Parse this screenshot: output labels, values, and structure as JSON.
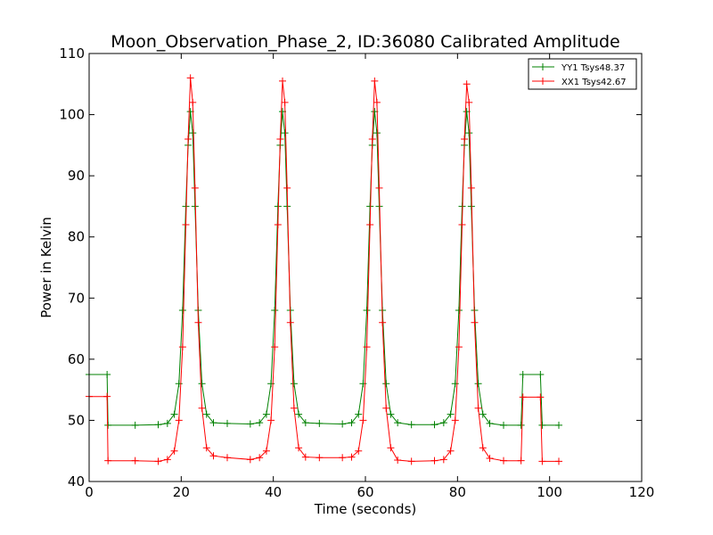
{
  "chart_data": {
    "type": "line",
    "title": "Moon_Observation_Phase_2, ID:36080 Calibrated Amplitude",
    "xlabel": "Time (seconds)",
    "ylabel": "Power in Kelvin",
    "xlim": [
      0,
      120
    ],
    "ylim": [
      40,
      110
    ],
    "xticks": [
      "0",
      "20",
      "40",
      "60",
      "80",
      "100",
      "120"
    ],
    "yticks": [
      "40",
      "50",
      "60",
      "70",
      "80",
      "90",
      "100",
      "110"
    ],
    "grid": false,
    "legend_position": "top-right",
    "marker": "+",
    "series": [
      {
        "name": "YY1 Tsys48.37",
        "color": "#008000",
        "x": [
          0,
          3.9,
          4.1,
          10,
          15,
          17,
          18.5,
          19.5,
          20.3,
          21,
          21.5,
          22,
          22.5,
          23,
          23.7,
          24.5,
          25.5,
          27,
          30,
          35,
          37,
          38.5,
          39.5,
          40.3,
          41,
          41.5,
          42,
          42.5,
          43,
          43.7,
          44.5,
          45.5,
          47,
          50,
          55,
          57,
          58.5,
          59.5,
          60.3,
          61,
          61.5,
          62,
          62.5,
          63,
          63.7,
          64.5,
          65.5,
          67,
          70,
          75,
          77,
          78.5,
          79.5,
          80.3,
          81,
          81.5,
          82,
          82.5,
          83,
          83.7,
          84.5,
          85.5,
          87,
          90,
          93.8,
          94.2,
          98,
          98.4,
          102
        ],
        "values": [
          57.5,
          57.5,
          49.2,
          49.2,
          49.3,
          49.5,
          51,
          56,
          68,
          85,
          95,
          100.5,
          97,
          85,
          68,
          56,
          51,
          49.6,
          49.5,
          49.4,
          49.6,
          51,
          56,
          68,
          85,
          95,
          100.5,
          97,
          85,
          68,
          56,
          51,
          49.6,
          49.5,
          49.4,
          49.6,
          51,
          56,
          68,
          85,
          95,
          100.5,
          97,
          85,
          68,
          56,
          51,
          49.6,
          49.3,
          49.3,
          49.6,
          51,
          56,
          68,
          85,
          95,
          100.5,
          97,
          85,
          68,
          56,
          51,
          49.5,
          49.2,
          49.2,
          57.5,
          57.5,
          49.2,
          49.2
        ]
      },
      {
        "name": "XX1 Tsys42.67",
        "color": "#ff0000",
        "x": [
          0,
          3.9,
          4.1,
          10,
          15,
          17,
          18.5,
          19.5,
          20.3,
          21,
          21.5,
          22,
          22.5,
          23,
          23.7,
          24.5,
          25.5,
          27,
          30,
          35,
          37,
          38.5,
          39.5,
          40.3,
          41,
          41.5,
          42,
          42.5,
          43,
          43.7,
          44.5,
          45.5,
          47,
          50,
          55,
          57,
          58.5,
          59.5,
          60.3,
          61,
          61.5,
          62,
          62.5,
          63,
          63.7,
          64.5,
          65.5,
          67,
          70,
          75,
          77,
          78.5,
          79.5,
          80.3,
          81,
          81.5,
          82,
          82.5,
          83,
          83.7,
          84.5,
          85.5,
          87,
          90,
          93.8,
          94.2,
          98,
          98.4,
          102
        ],
        "values": [
          53.9,
          53.9,
          43.4,
          43.4,
          43.3,
          43.6,
          45,
          50,
          62,
          82,
          96,
          106,
          102,
          88,
          66,
          52,
          45.5,
          44.2,
          43.9,
          43.6,
          43.9,
          45,
          50,
          62,
          82,
          96,
          105.5,
          102,
          88,
          66,
          52,
          45.5,
          44,
          43.9,
          43.9,
          44,
          45,
          50,
          62,
          82,
          96,
          105.5,
          102,
          88,
          66,
          52,
          45.5,
          43.5,
          43.3,
          43.4,
          43.6,
          45,
          50,
          62,
          82,
          96,
          105,
          102,
          88,
          66,
          52,
          45.5,
          43.8,
          43.4,
          43.4,
          53.8,
          53.8,
          43.3,
          43.3
        ]
      }
    ]
  }
}
